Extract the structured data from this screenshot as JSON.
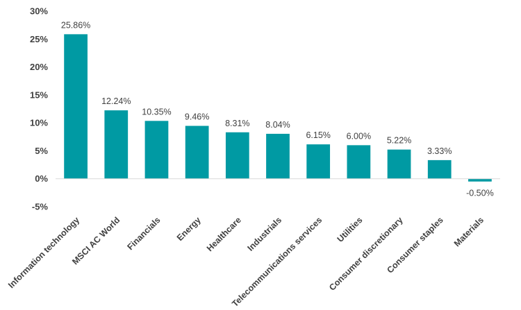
{
  "chart_data": {
    "type": "bar",
    "title": "",
    "xlabel": "",
    "ylabel": "",
    "categories": [
      "Information technology",
      "MSCI AC World",
      "Financials",
      "Energy",
      "Healthcare",
      "Industrials",
      "Telecommunications services",
      "Utilities",
      "Consumer discretionary",
      "Consumer staples",
      "Materials"
    ],
    "values": [
      25.86,
      12.24,
      10.35,
      9.46,
      8.31,
      8.04,
      6.15,
      6.0,
      5.22,
      3.33,
      -0.5
    ],
    "data_labels": [
      "25.86%",
      "12.24%",
      "10.35%",
      "9.46%",
      "8.31%",
      "8.04%",
      "6.15%",
      "6.00%",
      "5.22%",
      "3.33%",
      "-0.50%"
    ],
    "y_ticks": [
      -5,
      0,
      5,
      10,
      15,
      20,
      25,
      30
    ],
    "y_tick_labels": [
      "-5%",
      "0%",
      "5%",
      "10%",
      "15%",
      "20%",
      "25%",
      "30%"
    ],
    "ylim": [
      -5,
      30
    ],
    "grid": false,
    "legend": "none",
    "bar_color": "#009aa3",
    "axis_color": "#d9d9d9",
    "text_color": "#404040"
  }
}
